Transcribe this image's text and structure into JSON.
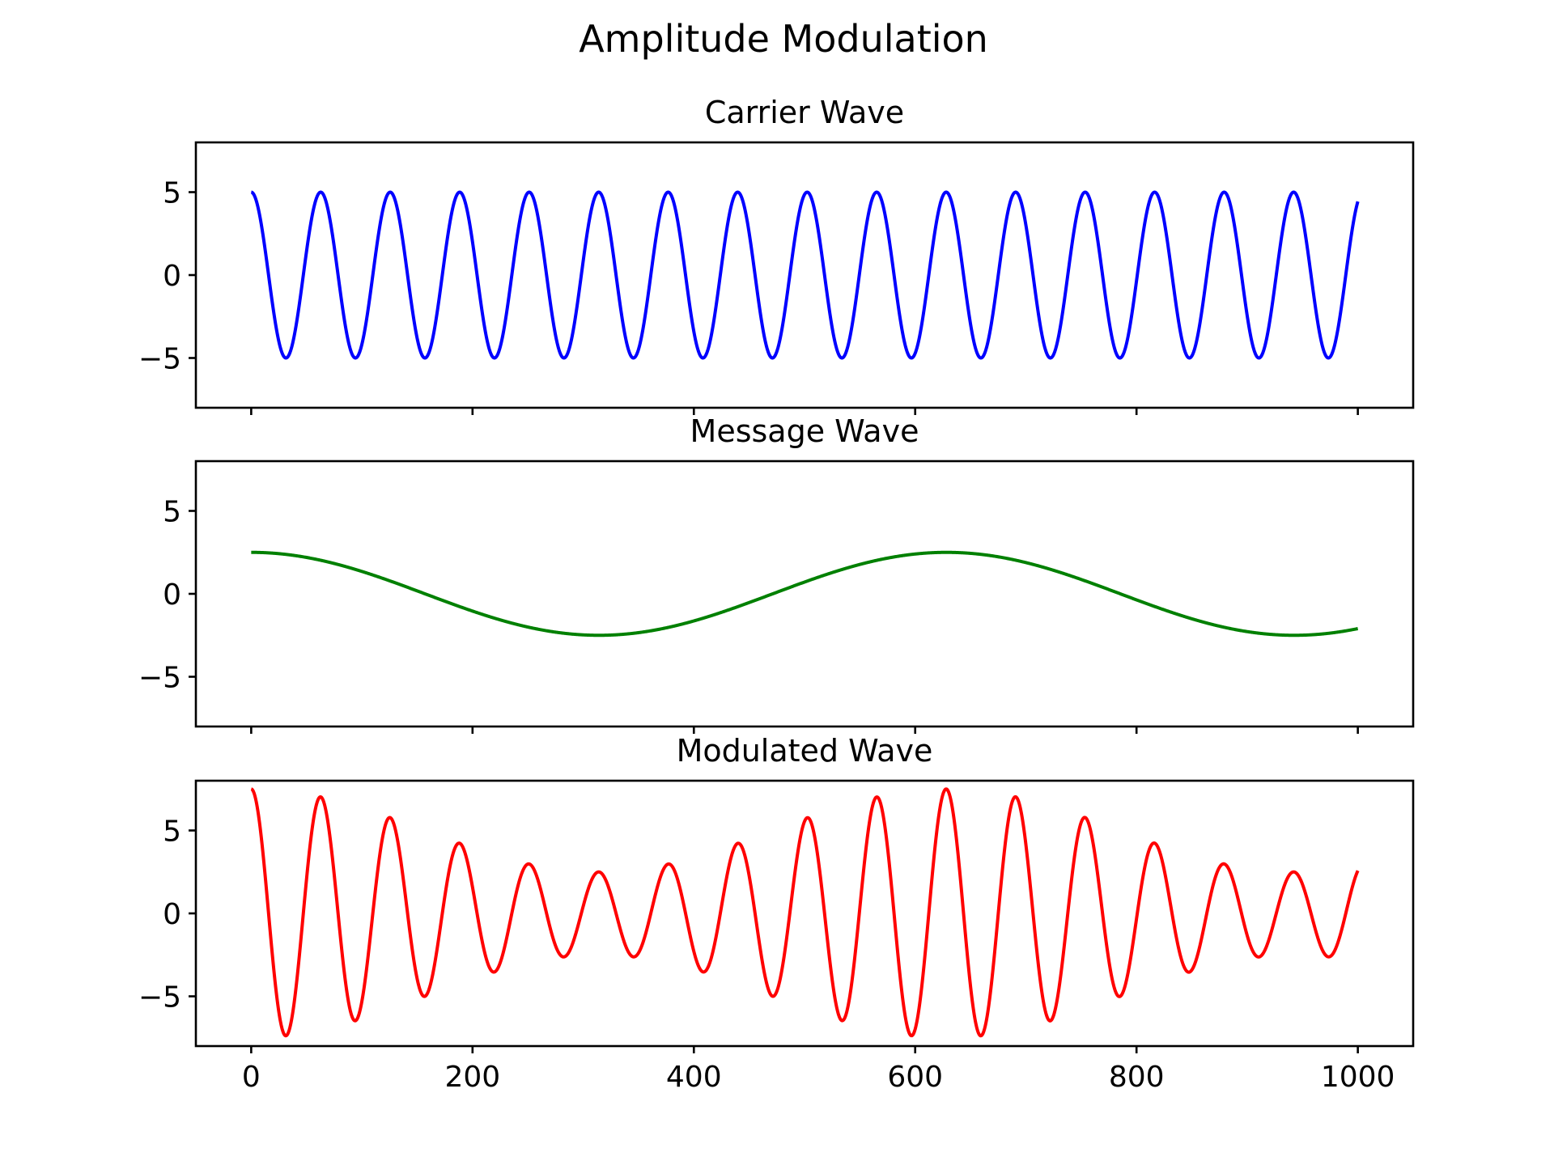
{
  "figure": {
    "title": "Amplitude Modulation"
  },
  "chart_data": [
    {
      "type": "line",
      "title": "Carrier Wave",
      "xlabel": "",
      "ylabel": "",
      "xlim": [
        -50,
        1050
      ],
      "ylim": [
        -8,
        8
      ],
      "x_ticks": [
        0,
        200,
        400,
        600,
        800,
        1000
      ],
      "x_tick_labels": [],
      "y_ticks": [
        -5,
        0,
        5
      ],
      "y_tick_labels": [
        "−5",
        "0",
        "5"
      ],
      "grid": false,
      "series": [
        {
          "color": "#0000ff",
          "x_start": 0,
          "x_end": 1000,
          "amplitude": 5,
          "period": 62.8,
          "phase": 0,
          "form": "cosine"
        }
      ]
    },
    {
      "type": "line",
      "title": "Message Wave",
      "xlabel": "",
      "ylabel": "",
      "xlim": [
        -50,
        1050
      ],
      "ylim": [
        -8,
        8
      ],
      "x_ticks": [
        0,
        200,
        400,
        600,
        800,
        1000
      ],
      "x_tick_labels": [],
      "y_ticks": [
        -5,
        0,
        5
      ],
      "y_tick_labels": [
        "−5",
        "0",
        "5"
      ],
      "grid": false,
      "series": [
        {
          "color": "#008000",
          "x_start": 0,
          "x_end": 1000,
          "amplitude": 2.5,
          "period": 628.3,
          "phase": 0,
          "form": "cosine"
        }
      ]
    },
    {
      "type": "line",
      "title": "Modulated Wave",
      "xlabel": "",
      "ylabel": "",
      "xlim": [
        -50,
        1050
      ],
      "ylim": [
        -8,
        8
      ],
      "x_ticks": [
        0,
        200,
        400,
        600,
        800,
        1000
      ],
      "x_tick_labels": [
        "0",
        "200",
        "400",
        "600",
        "800",
        "1000"
      ],
      "y_ticks": [
        -5,
        0,
        5
      ],
      "y_tick_labels": [
        "−5",
        "0",
        "5"
      ],
      "grid": false,
      "series": [
        {
          "color": "#ff0000",
          "x_start": 0,
          "x_end": 1000,
          "carrier_amplitude": 5,
          "carrier_period": 62.8,
          "message_amplitude": 2.5,
          "message_period": 628.3,
          "form": "am_product"
        }
      ]
    }
  ]
}
